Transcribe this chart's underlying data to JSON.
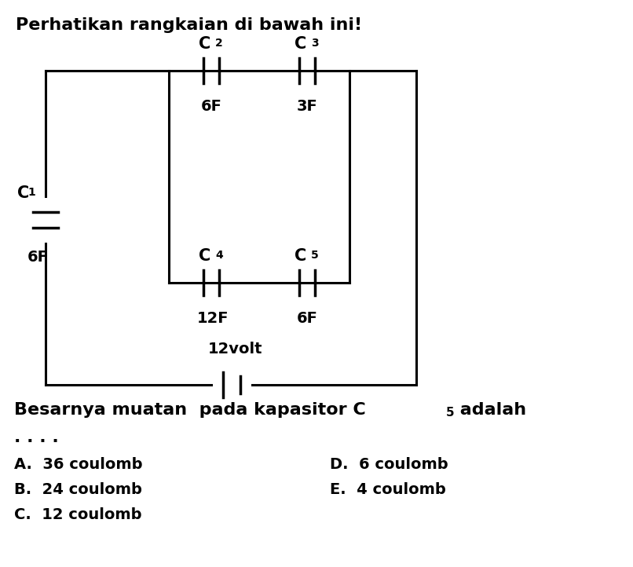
{
  "title": "Perhatikan rangkaian di bawah ini!",
  "title_fontsize": 16,
  "background_color": "#ffffff",
  "circuit": {
    "c1_label": "C",
    "c1_sub": "1",
    "c1_value": "6F",
    "c2_label": "C",
    "c2_sub": "2",
    "c2_value": "6F",
    "c3_label": "C",
    "c3_sub": "3",
    "c3_value": "3F",
    "c4_label": "C",
    "c4_sub": "4",
    "c4_value": "12F",
    "c5_label": "C",
    "c5_sub": "5",
    "c5_value": "6F",
    "battery_label": "12volt"
  },
  "question_main": "Besarnya muatan  pada kapasitor C",
  "question_sub": "5",
  "question_end": " adalah",
  "dots": ". . . .",
  "options_left": [
    "A.  36 coulomb",
    "B.  24 coulomb",
    "C.  12 coulomb"
  ],
  "options_right": [
    "D.  6 coulomb",
    "E.  4 coulomb"
  ],
  "option_fontsize": 14,
  "question_fontsize": 16
}
